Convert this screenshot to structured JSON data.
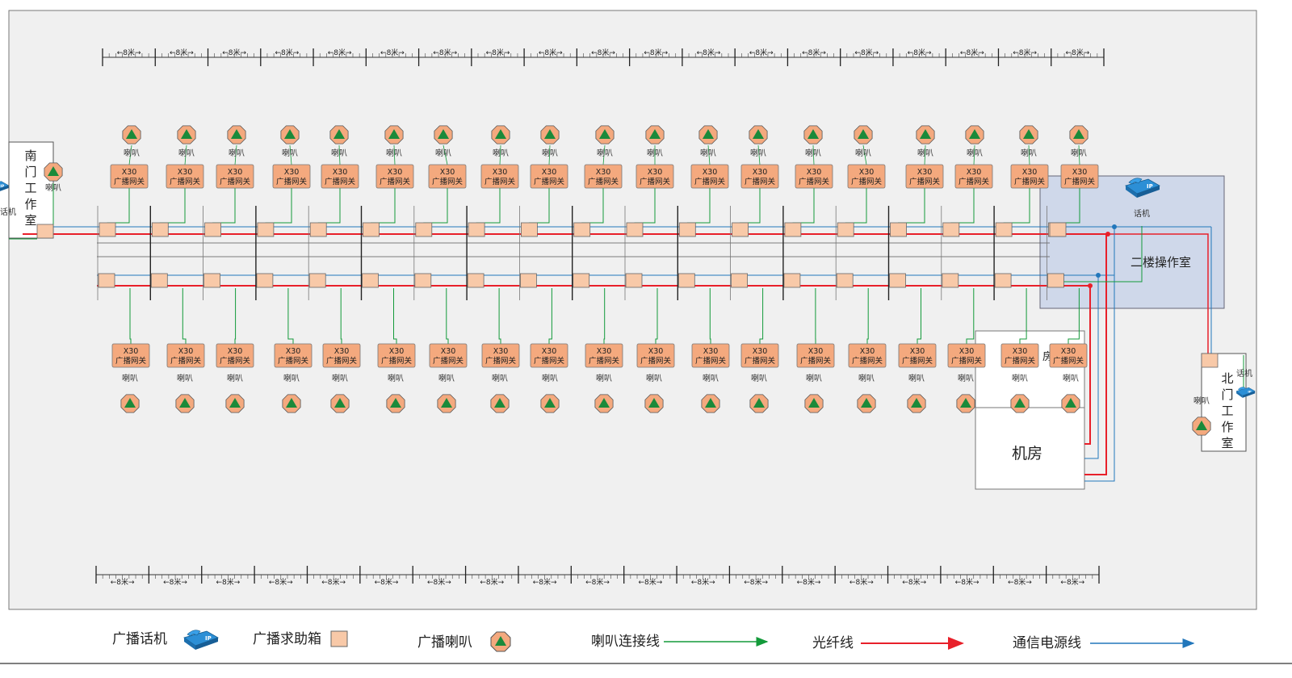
{
  "labels": {
    "south_room": "南门工作室",
    "north_room": "北门工作室",
    "operation_room": "二楼操作室",
    "machine_room": "机房",
    "machine_room_fragment": "房",
    "phone": "话机",
    "speaker": "喇叭",
    "gateway_model": "X30",
    "gateway_name": "广播网关",
    "segment_length": "8米"
  },
  "legend": {
    "phone": "广播话机",
    "help_box": "广播求助箱",
    "speaker": "广播喇叭",
    "speaker_line": "喇叭连接线",
    "fiber_line": "光纤线",
    "power_line": "通信电源线"
  },
  "colors": {
    "fiber": "#e8202a",
    "speaker_line": "#139a3a",
    "power_line": "#2277bb",
    "box_fill": "#f8c9a8",
    "speaker_fill": "#f4a97e",
    "speaker_glyph": "#1b8a3a",
    "operation_room_fill": "#cfd8ea"
  },
  "counts": {
    "top_gateways": 19,
    "bottom_gateways": 19,
    "top_ruler_segments": 19,
    "bottom_ruler_segments": 19
  }
}
